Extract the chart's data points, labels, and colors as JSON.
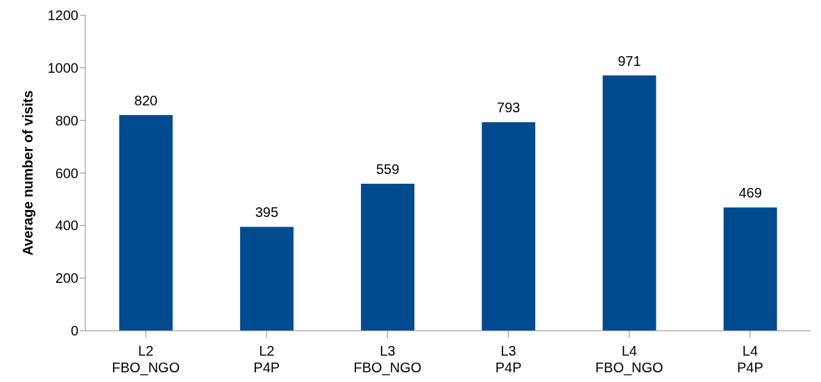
{
  "chart_data": {
    "type": "bar",
    "ylabel": "Average number of visits",
    "categories": [
      "L2\nFBO_NGO",
      "L2\nP4P",
      "L3\nFBO_NGO",
      "L3\nP4P",
      "L4\nFBO_NGO",
      "L4\nP4P"
    ],
    "values": [
      820,
      395,
      559,
      793,
      971,
      469
    ],
    "color": "#004a8f",
    "ylim": [
      0,
      1200
    ],
    "yticks": [
      0,
      200,
      400,
      600,
      800,
      1000,
      1200
    ],
    "data_labels": true,
    "grid": false
  }
}
